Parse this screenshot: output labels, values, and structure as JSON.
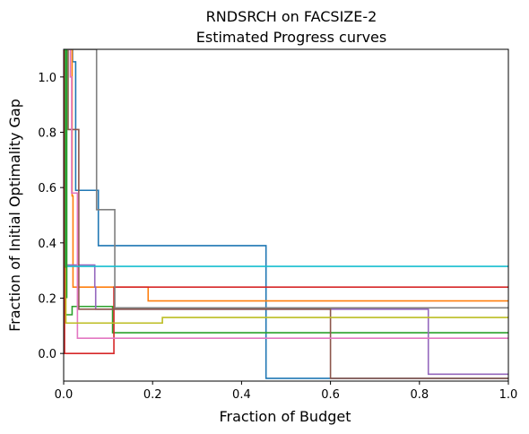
{
  "chart_data": {
    "type": "line",
    "title": "RNDSRCH on FACSIZE-2",
    "subtitle": "Estimated Progress curves",
    "xlabel": "Fraction of Budget",
    "ylabel": "Fraction of Initial Optimality Gap",
    "xlim": [
      0,
      1
    ],
    "ylim": [
      -0.1,
      1.1
    ],
    "x_ticks": [
      "0.0",
      "0.2",
      "0.4",
      "0.6",
      "0.8",
      "1.0"
    ],
    "y_ticks": [
      "0.0",
      "0.2",
      "0.4",
      "0.6",
      "0.8",
      "1.0"
    ],
    "grid": false,
    "legend": "none",
    "series": [
      {
        "color": "#1f77b4",
        "steps": [
          [
            0.0,
            1.1
          ],
          [
            0.02,
            1.055
          ],
          [
            0.027,
            0.59
          ],
          [
            0.078,
            0.39
          ],
          [
            0.455,
            -0.09
          ],
          [
            1.0,
            -0.09
          ]
        ]
      },
      {
        "color": "#ff7f0e",
        "steps": [
          [
            0.0,
            1.1
          ],
          [
            0.019,
            0.57
          ],
          [
            0.021,
            0.24
          ],
          [
            0.19,
            0.19
          ],
          [
            1.0,
            0.19
          ]
        ]
      },
      {
        "color": "#2ca02c",
        "steps": [
          [
            0.0,
            1.1
          ],
          [
            0.003,
            0.14
          ],
          [
            0.019,
            0.17
          ],
          [
            0.11,
            0.075
          ],
          [
            1.0,
            0.075
          ]
        ]
      },
      {
        "color": "#d62728",
        "steps": [
          [
            0.0,
            1.1
          ],
          [
            0.002,
            0.0
          ],
          [
            0.113,
            0.24
          ],
          [
            1.0,
            0.24
          ]
        ]
      },
      {
        "color": "#9467bd",
        "steps": [
          [
            0.0,
            1.1
          ],
          [
            0.004,
            0.32
          ],
          [
            0.07,
            0.24
          ],
          [
            0.072,
            0.16
          ],
          [
            0.82,
            -0.075
          ],
          [
            1.0,
            -0.075
          ]
        ]
      },
      {
        "color": "#8c564b",
        "steps": [
          [
            0.0,
            1.1
          ],
          [
            0.01,
            0.81
          ],
          [
            0.034,
            0.16
          ],
          [
            0.6,
            -0.09
          ],
          [
            1.0,
            -0.09
          ]
        ]
      },
      {
        "color": "#e377c2",
        "steps": [
          [
            0.0,
            1.1
          ],
          [
            0.015,
            1.0
          ],
          [
            0.018,
            0.58
          ],
          [
            0.031,
            0.055
          ],
          [
            1.0,
            0.055
          ]
        ]
      },
      {
        "color": "#7f7f7f",
        "steps": [
          [
            0.0,
            1.1
          ],
          [
            0.074,
            0.52
          ],
          [
            0.115,
            0.165
          ],
          [
            1.0,
            0.165
          ]
        ]
      },
      {
        "color": "#bcbd22",
        "steps": [
          [
            0.0,
            1.1
          ],
          [
            0.005,
            0.11
          ],
          [
            0.222,
            0.13
          ],
          [
            1.0,
            0.13
          ]
        ]
      },
      {
        "color": "#17becf",
        "steps": [
          [
            0.0,
            1.1
          ],
          [
            0.006,
            0.315
          ],
          [
            1.0,
            0.315
          ]
        ]
      }
    ],
    "extra_lines": [
      {
        "color": "#2ca02c",
        "points": [
          [
            0.004,
            1.1
          ],
          [
            0.004,
            0.31
          ]
        ]
      },
      {
        "color": "#2ca02c",
        "points": [
          [
            0.007,
            1.1
          ],
          [
            0.007,
            0.2
          ]
        ]
      }
    ]
  }
}
